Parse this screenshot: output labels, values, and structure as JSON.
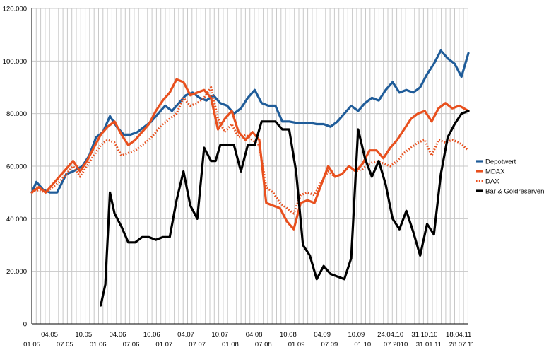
{
  "chart_data": {
    "type": "line",
    "grid": true,
    "legend_position": "right",
    "ylim": [
      0,
      120000
    ],
    "y_ticks": [
      "0",
      "20.000",
      "40.000",
      "60.000",
      "80.000",
      "100.000",
      "120.000"
    ],
    "x_tick_labels_upper": [
      "04.05",
      "10.05",
      "04.06",
      "10.06",
      "04.07",
      "10.07",
      "04.08",
      "10.08",
      "04.09",
      "10.09",
      "24.04.10",
      "31.10.10",
      "18.04.11"
    ],
    "x_tick_labels_lower": [
      "01.05",
      "07.05",
      "01.06",
      "07.06",
      "01.07",
      "07.07",
      "01.08",
      "07.08",
      "01.09",
      "07.09",
      "01.10",
      "07.2010",
      "31.01.11",
      "28.07.11"
    ],
    "series": [
      {
        "name": "Depotwert",
        "color": "#1f5c99",
        "dash": "solid",
        "x": [
          0,
          2,
          5,
          8,
          11,
          15,
          18,
          22,
          25,
          28,
          31,
          34,
          37,
          40,
          43,
          46,
          49,
          52,
          55,
          58,
          61,
          64,
          67,
          70,
          73,
          76,
          79,
          82,
          85,
          88,
          91,
          94,
          97,
          100,
          103,
          106,
          109,
          112,
          115,
          118,
          121,
          124,
          127,
          130,
          133,
          136,
          139,
          142,
          145,
          148,
          151,
          154,
          157,
          160,
          163,
          166,
          169,
          172,
          175,
          178,
          181,
          184,
          187,
          190
        ],
        "y": [
          50000,
          54000,
          51000,
          50000,
          50000,
          57000,
          58000,
          60000,
          64000,
          71000,
          73000,
          79000,
          75000,
          72000,
          72000,
          73000,
          75000,
          77000,
          80000,
          83000,
          81000,
          84000,
          87000,
          88000,
          86000,
          85000,
          87000,
          84000,
          83000,
          80000,
          82000,
          86000,
          89000,
          84000,
          83000,
          83000,
          77000,
          77000,
          76500,
          76500,
          76500,
          76000,
          76000,
          75000,
          77000,
          80000,
          83000,
          81000,
          84000,
          86000,
          85000,
          89000,
          92000,
          88000,
          89000,
          88000,
          90000,
          95000,
          99000,
          104000,
          101000,
          99000,
          94000,
          103000
        ]
      },
      {
        "name": "MDAX",
        "color": "#e8501e",
        "dash": "solid",
        "x": [
          0,
          3,
          6,
          9,
          12,
          15,
          18,
          21,
          24,
          27,
          30,
          33,
          36,
          39,
          42,
          45,
          48,
          51,
          54,
          57,
          60,
          63,
          66,
          69,
          72,
          75,
          78,
          81,
          84,
          87,
          90,
          93,
          96,
          99,
          102,
          105,
          108,
          111,
          114,
          117,
          120,
          123,
          126,
          129,
          132,
          135,
          138,
          141,
          144,
          147,
          150,
          153,
          156,
          159,
          162,
          165,
          168,
          171,
          174,
          177,
          180,
          183,
          186,
          190
        ],
        "y": [
          50000,
          52000,
          50000,
          53000,
          56000,
          59000,
          62000,
          58000,
          62000,
          67000,
          72000,
          75000,
          77000,
          72000,
          68000,
          70000,
          73000,
          76000,
          81000,
          85000,
          88000,
          93000,
          92000,
          87000,
          88000,
          89000,
          86000,
          74000,
          78000,
          81000,
          73000,
          70000,
          73000,
          70000,
          46000,
          45000,
          44000,
          39000,
          36000,
          46000,
          47000,
          46000,
          53000,
          60000,
          56000,
          57000,
          60000,
          58000,
          61000,
          66000,
          66000,
          63000,
          67000,
          70000,
          74000,
          78000,
          80000,
          81000,
          77000,
          82000,
          84000,
          82000,
          83000,
          81000
        ]
      },
      {
        "name": "DAX",
        "color": "#e8501e",
        "dash": "dotted",
        "x": [
          0,
          3,
          6,
          9,
          12,
          15,
          18,
          21,
          24,
          27,
          30,
          33,
          36,
          39,
          42,
          45,
          48,
          51,
          54,
          57,
          60,
          63,
          66,
          69,
          72,
          75,
          78,
          81,
          84,
          87,
          90,
          93,
          96,
          99,
          102,
          105,
          108,
          111,
          114,
          117,
          120,
          123,
          126,
          129,
          132,
          135,
          138,
          141,
          144,
          147,
          150,
          153,
          156,
          159,
          162,
          165,
          168,
          171,
          174,
          177,
          180,
          183,
          186,
          190
        ],
        "y": [
          50000,
          51000,
          50000,
          52000,
          54000,
          57000,
          60000,
          56000,
          60000,
          64000,
          68000,
          70000,
          69000,
          64000,
          65000,
          66000,
          68000,
          70000,
          73000,
          76000,
          78000,
          80000,
          86000,
          83000,
          84000,
          86000,
          90000,
          78000,
          73000,
          76000,
          71000,
          72000,
          70000,
          68000,
          52000,
          50000,
          46000,
          44000,
          42000,
          49000,
          50000,
          49000,
          54000,
          58000,
          56000,
          57000,
          60000,
          58000,
          59000,
          61000,
          62000,
          61000,
          60000,
          62000,
          65000,
          67000,
          69000,
          70000,
          64000,
          70000,
          69000,
          70000,
          69000,
          66000
        ]
      },
      {
        "name": "Bar & Goldreserven",
        "color": "#000000",
        "dash": "solid",
        "x": [
          30,
          32,
          34,
          36,
          39,
          42,
          45,
          48,
          51,
          54,
          57,
          60,
          63,
          66,
          69,
          72,
          75,
          78,
          80,
          82,
          85,
          88,
          91,
          94,
          97,
          100,
          103,
          106,
          109,
          112,
          115,
          118,
          121,
          124,
          127,
          130,
          133,
          136,
          139,
          142,
          145,
          148,
          151,
          154,
          157,
          160,
          163,
          166,
          169,
          172,
          175,
          178,
          181,
          184,
          187,
          190
        ],
        "y": [
          7000,
          15000,
          50000,
          42000,
          37000,
          31000,
          31000,
          33000,
          33000,
          32000,
          33000,
          33000,
          47000,
          58000,
          45000,
          40000,
          67000,
          62000,
          62000,
          68000,
          68000,
          68000,
          58000,
          68000,
          68000,
          77000,
          77000,
          77000,
          74000,
          74000,
          58000,
          30000,
          26000,
          17000,
          22000,
          19000,
          18000,
          17000,
          25000,
          74000,
          63000,
          56000,
          62000,
          53000,
          40000,
          36000,
          43000,
          35000,
          26000,
          38000,
          34000,
          57000,
          71000,
          76000,
          80000,
          81000
        ]
      }
    ]
  }
}
